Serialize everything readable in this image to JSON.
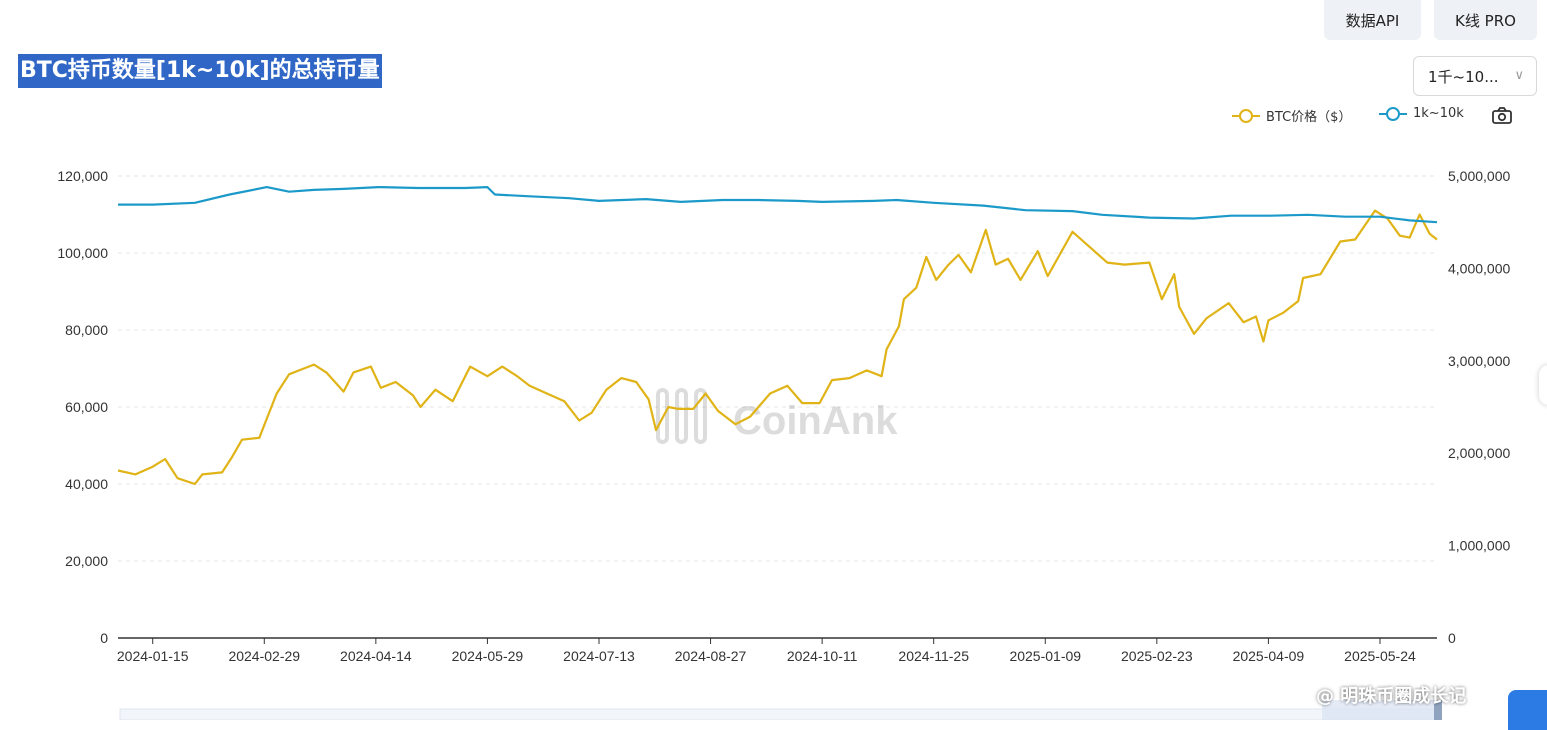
{
  "toolbar": {
    "api_label": "数据API",
    "kline_label": "K线 PRO"
  },
  "title": "BTC持币数量[1k~10k]的总持币量",
  "range_select": {
    "value": "1千~10..."
  },
  "legend": {
    "btc_label": "BTC价格（$）",
    "holders_label": "1k~10k"
  },
  "watermark": {
    "chart": "CoinAnk",
    "user": "@ 明珠币圈成长记"
  },
  "colors": {
    "btc": "#e0b317",
    "holders": "#1b9ac9",
    "title_bg": "#3067c7"
  },
  "icons": {
    "camera": "camera-icon",
    "chevron": "chevron-down-icon"
  },
  "chart_data": {
    "type": "line",
    "x_ticks": [
      "2024-01-15",
      "2024-02-29",
      "2024-04-14",
      "2024-05-29",
      "2024-07-13",
      "2024-08-27",
      "2024-10-11",
      "2024-11-25",
      "2025-01-09",
      "2025-02-23",
      "2025-04-09",
      "2025-05-24"
    ],
    "y_left": {
      "ticks": [
        "0",
        "20,000",
        "40,000",
        "60,000",
        "80,000",
        "100,000",
        "120,000"
      ],
      "ylim": [
        0,
        120000
      ]
    },
    "y_right": {
      "ticks": [
        "0",
        "1,000,000",
        "2,000,000",
        "3,000,000",
        "4,000,000",
        "5,000,000"
      ],
      "ylim": [
        0,
        5000000
      ]
    },
    "x_range": [
      "2024-01-01",
      "2025-06-16"
    ],
    "series": [
      {
        "name": "BTC价格（$）",
        "axis": "left",
        "color": "#e0b317",
        "points": [
          [
            "2024-01-01",
            43500
          ],
          [
            "2024-01-08",
            42500
          ],
          [
            "2024-01-15",
            44500
          ],
          [
            "2024-01-20",
            46500
          ],
          [
            "2024-01-25",
            41500
          ],
          [
            "2024-02-01",
            40000
          ],
          [
            "2024-02-04",
            42500
          ],
          [
            "2024-02-12",
            43000
          ],
          [
            "2024-02-16",
            47000
          ],
          [
            "2024-02-20",
            51500
          ],
          [
            "2024-02-27",
            52000
          ],
          [
            "2024-03-01",
            57000
          ],
          [
            "2024-03-05",
            63500
          ],
          [
            "2024-03-10",
            68500
          ],
          [
            "2024-03-14",
            69500
          ],
          [
            "2024-03-20",
            71000
          ],
          [
            "2024-03-25",
            69000
          ],
          [
            "2024-04-01",
            64000
          ],
          [
            "2024-04-05",
            69000
          ],
          [
            "2024-04-12",
            70500
          ],
          [
            "2024-04-16",
            65000
          ],
          [
            "2024-04-22",
            66500
          ],
          [
            "2024-04-29",
            63000
          ],
          [
            "2024-05-02",
            60000
          ],
          [
            "2024-05-08",
            64500
          ],
          [
            "2024-05-15",
            61500
          ],
          [
            "2024-05-22",
            70500
          ],
          [
            "2024-05-29",
            68000
          ],
          [
            "2024-06-04",
            70500
          ],
          [
            "2024-06-10",
            68000
          ],
          [
            "2024-06-15",
            65500
          ],
          [
            "2024-06-22",
            63500
          ],
          [
            "2024-06-29",
            61500
          ],
          [
            "2024-07-05",
            56500
          ],
          [
            "2024-07-10",
            58500
          ],
          [
            "2024-07-16",
            64500
          ],
          [
            "2024-07-22",
            67500
          ],
          [
            "2024-07-28",
            66500
          ],
          [
            "2024-08-02",
            62000
          ],
          [
            "2024-08-05",
            54000
          ],
          [
            "2024-08-10",
            60000
          ],
          [
            "2024-08-14",
            59500
          ],
          [
            "2024-08-20",
            59500
          ],
          [
            "2024-08-25",
            63500
          ],
          [
            "2024-08-30",
            59000
          ],
          [
            "2024-09-06",
            55500
          ],
          [
            "2024-09-12",
            57500
          ],
          [
            "2024-09-20",
            63500
          ],
          [
            "2024-09-27",
            65500
          ],
          [
            "2024-10-03",
            61000
          ],
          [
            "2024-10-10",
            61000
          ],
          [
            "2024-10-15",
            67000
          ],
          [
            "2024-10-22",
            67500
          ],
          [
            "2024-10-29",
            69500
          ],
          [
            "2024-11-04",
            68000
          ],
          [
            "2024-11-06",
            75000
          ],
          [
            "2024-11-11",
            81000
          ],
          [
            "2024-11-13",
            88000
          ],
          [
            "2024-11-18",
            91000
          ],
          [
            "2024-11-22",
            99000
          ],
          [
            "2024-11-26",
            93000
          ],
          [
            "2024-12-01",
            97000
          ],
          [
            "2024-12-05",
            99500
          ],
          [
            "2024-12-10",
            95000
          ],
          [
            "2024-12-16",
            106000
          ],
          [
            "2024-12-20",
            97000
          ],
          [
            "2024-12-25",
            98500
          ],
          [
            "2024-12-30",
            93000
          ],
          [
            "2025-01-06",
            100500
          ],
          [
            "2025-01-10",
            94000
          ],
          [
            "2025-01-20",
            105500
          ],
          [
            "2025-01-27",
            101500
          ],
          [
            "2025-02-03",
            97500
          ],
          [
            "2025-02-10",
            97000
          ],
          [
            "2025-02-20",
            97500
          ],
          [
            "2025-02-25",
            88000
          ],
          [
            "2025-03-02",
            94500
          ],
          [
            "2025-03-04",
            86000
          ],
          [
            "2025-03-10",
            79000
          ],
          [
            "2025-03-15",
            83000
          ],
          [
            "2025-03-24",
            87000
          ],
          [
            "2025-03-30",
            82000
          ],
          [
            "2025-04-04",
            83500
          ],
          [
            "2025-04-07",
            77000
          ],
          [
            "2025-04-09",
            82500
          ],
          [
            "2025-04-15",
            84500
          ],
          [
            "2025-04-21",
            87500
          ],
          [
            "2025-04-23",
            93500
          ],
          [
            "2025-04-30",
            94500
          ],
          [
            "2025-05-08",
            103000
          ],
          [
            "2025-05-14",
            103500
          ],
          [
            "2025-05-22",
            111000
          ],
          [
            "2025-05-27",
            109000
          ],
          [
            "2025-06-01",
            104500
          ],
          [
            "2025-06-05",
            104000
          ],
          [
            "2025-06-09",
            110000
          ],
          [
            "2025-06-13",
            105000
          ],
          [
            "2025-06-16",
            103500
          ]
        ]
      },
      {
        "name": "1k~10k",
        "axis": "right",
        "color": "#1b9ac9",
        "points": [
          [
            "2024-01-01",
            4690000
          ],
          [
            "2024-01-15",
            4690000
          ],
          [
            "2024-02-01",
            4710000
          ],
          [
            "2024-02-15",
            4800000
          ],
          [
            "2024-03-01",
            4880000
          ],
          [
            "2024-03-10",
            4830000
          ],
          [
            "2024-03-20",
            4850000
          ],
          [
            "2024-04-01",
            4860000
          ],
          [
            "2024-04-15",
            4880000
          ],
          [
            "2024-05-01",
            4870000
          ],
          [
            "2024-05-20",
            4870000
          ],
          [
            "2024-05-29",
            4880000
          ],
          [
            "2024-06-01",
            4800000
          ],
          [
            "2024-06-15",
            4780000
          ],
          [
            "2024-07-01",
            4760000
          ],
          [
            "2024-07-13",
            4730000
          ],
          [
            "2024-08-01",
            4750000
          ],
          [
            "2024-08-15",
            4720000
          ],
          [
            "2024-09-01",
            4740000
          ],
          [
            "2024-09-15",
            4740000
          ],
          [
            "2024-10-01",
            4730000
          ],
          [
            "2024-10-11",
            4720000
          ],
          [
            "2024-11-01",
            4730000
          ],
          [
            "2024-11-10",
            4740000
          ],
          [
            "2024-11-25",
            4710000
          ],
          [
            "2024-12-15",
            4680000
          ],
          [
            "2025-01-01",
            4630000
          ],
          [
            "2025-01-20",
            4620000
          ],
          [
            "2025-02-01",
            4580000
          ],
          [
            "2025-02-20",
            4550000
          ],
          [
            "2025-03-10",
            4540000
          ],
          [
            "2025-03-25",
            4570000
          ],
          [
            "2025-04-10",
            4570000
          ],
          [
            "2025-04-25",
            4580000
          ],
          [
            "2025-05-10",
            4560000
          ],
          [
            "2025-05-24",
            4560000
          ],
          [
            "2025-06-05",
            4520000
          ],
          [
            "2025-06-16",
            4500000
          ]
        ]
      }
    ],
    "legend_position": "top-right",
    "grid": true
  }
}
